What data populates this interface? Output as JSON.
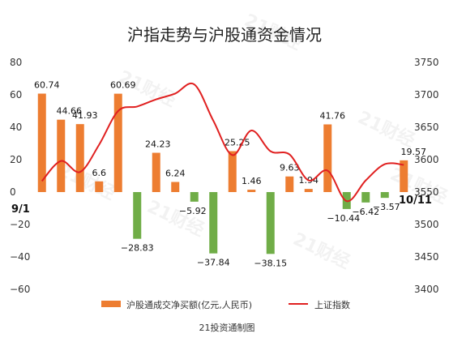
{
  "chart_data": {
    "type": "bar",
    "title": "沪指走势与沪股通资金情况",
    "source": "21投资通制图",
    "watermark": "21财经",
    "x_start_label": "9/1",
    "x_end_label": "10/11",
    "left_axis": {
      "min": -60,
      "max": 80,
      "ticks": [
        80,
        60,
        40,
        20,
        0,
        -20,
        -40,
        -60
      ]
    },
    "right_axis": {
      "min": 3400,
      "max": 3750,
      "ticks": [
        3750,
        3700,
        3650,
        3600,
        3550,
        3500,
        3450,
        3400
      ]
    },
    "grid": false,
    "legend_position": "bottom",
    "series": [
      {
        "name": "沪股通成交净买额(亿元,人民币)",
        "kind": "bar",
        "axis": "left",
        "values": [
          60.74,
          44.66,
          41.93,
          6.6,
          60.69,
          -28.83,
          24.23,
          6.24,
          -5.92,
          -37.84,
          25.25,
          1.46,
          -38.15,
          9.63,
          1.94,
          41.76,
          -10.44,
          -6.42,
          -3.57,
          19.57
        ],
        "labels": [
          "60.74",
          "44.66",
          "41.93",
          "6.6",
          "60.69",
          "−28.83",
          "24.23",
          "6.24",
          "−5.92",
          "−37.84",
          "25.25",
          "1.46",
          "−38.15",
          "9.63",
          "1.94",
          "41.76",
          "−10.44",
          "−6.42",
          "−3.57",
          "19.57"
        ],
        "positive_color": "#ED7D31",
        "negative_color": "#70AD47"
      },
      {
        "name": "上证指数",
        "kind": "line",
        "axis": "right",
        "x": [
          0,
          1,
          2,
          3,
          4,
          5,
          6,
          7,
          8,
          9,
          10,
          11,
          12,
          13,
          14,
          15,
          16,
          17,
          18,
          19
        ],
        "values": [
          3567,
          3598,
          3581,
          3623,
          3675,
          3682,
          3693,
          3702,
          3716,
          3660,
          3607,
          3645,
          3613,
          3608,
          3568,
          3583,
          3536,
          3568,
          3593,
          3592
        ],
        "color": "#E02020"
      }
    ]
  }
}
